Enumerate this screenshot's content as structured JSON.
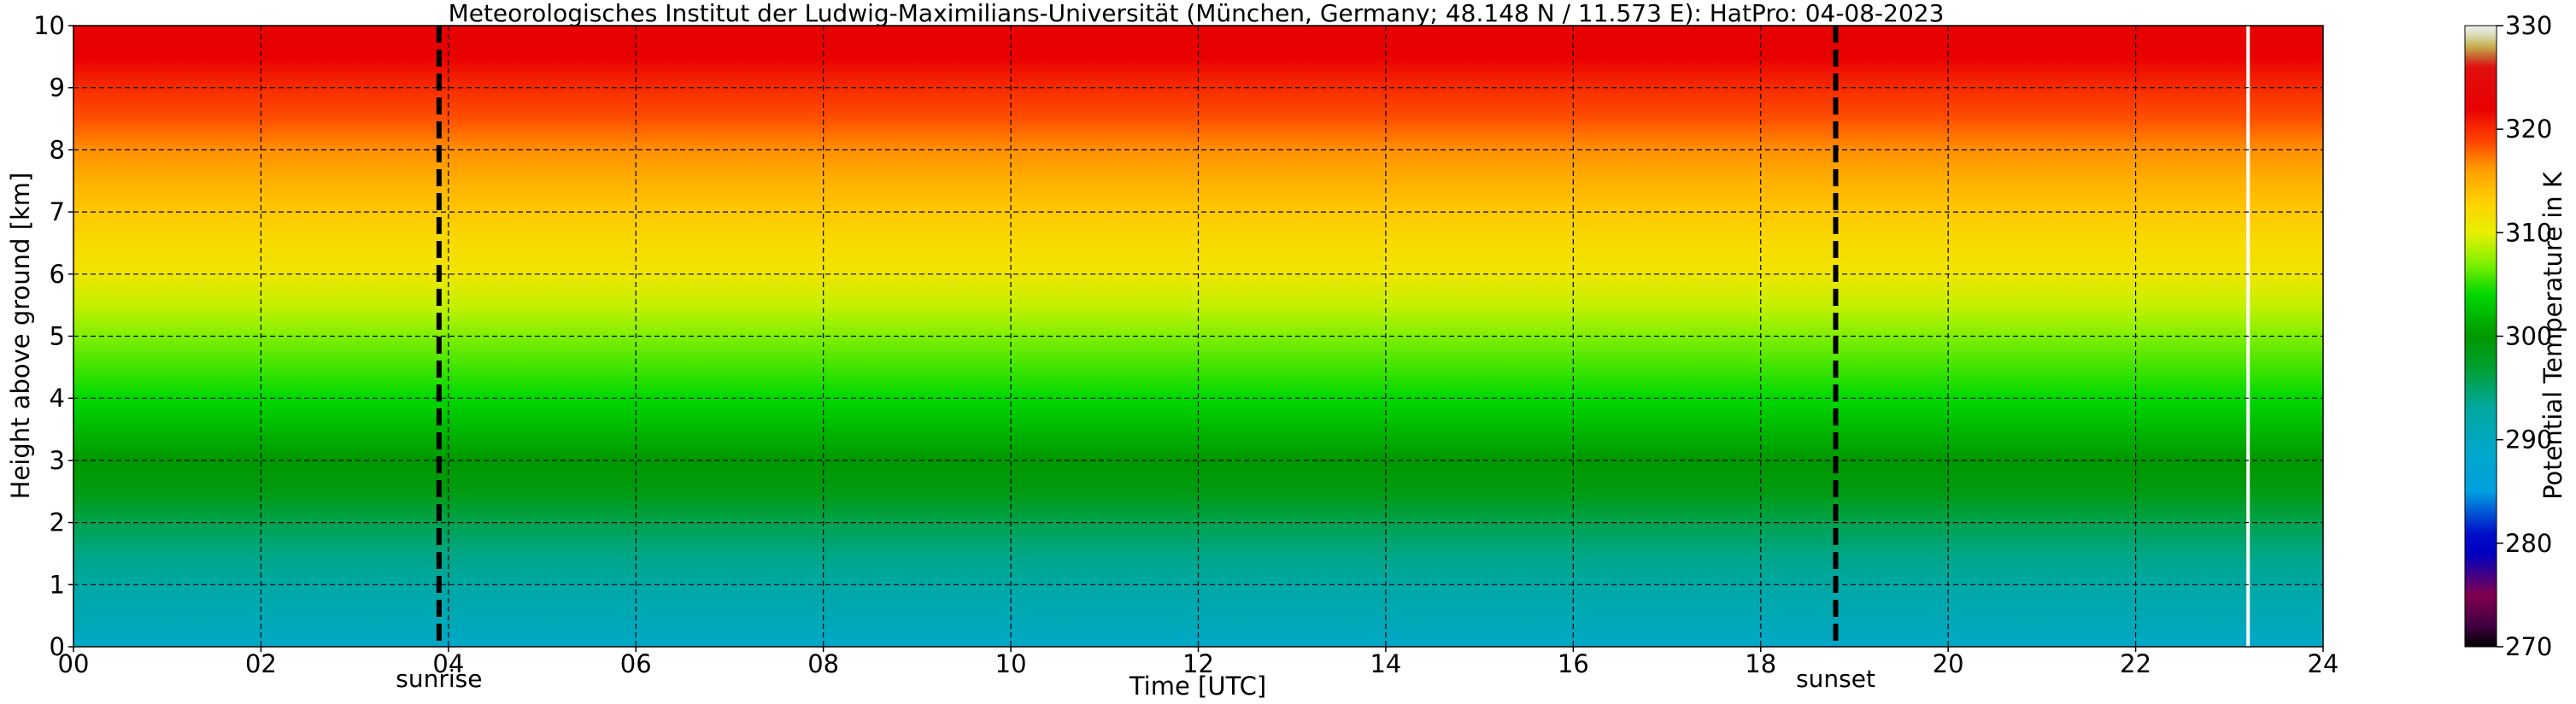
{
  "chart_data": {
    "type": "heatmap",
    "title": "Meteorologisches Institut der Ludwig-Maximilians-Universität (München, Germany; 48.148 N / 11.573 E):    HatPro: 04-08-2023",
    "xlabel": "Time [UTC]",
    "ylabel": "Height above ground [km]",
    "xlim": [
      0,
      24
    ],
    "ylim": [
      0,
      10
    ],
    "x_ticks": [
      "00",
      "02",
      "04",
      "06",
      "08",
      "10",
      "12",
      "14",
      "16",
      "18",
      "20",
      "22",
      "24"
    ],
    "y_ticks": [
      "0",
      "1",
      "2",
      "3",
      "4",
      "5",
      "6",
      "7",
      "8",
      "9",
      "10"
    ],
    "grid": true,
    "colorbar": {
      "label": "Potential Temperature in K",
      "range": [
        270,
        330
      ],
      "ticks": [
        "270",
        "280",
        "290",
        "300",
        "310",
        "320",
        "330"
      ],
      "stops": [
        {
          "value": 270,
          "color": "#000000"
        },
        {
          "value": 272,
          "color": "#400040"
        },
        {
          "value": 275,
          "color": "#800050"
        },
        {
          "value": 279,
          "color": "#0000c0"
        },
        {
          "value": 281,
          "color": "#0010c8"
        },
        {
          "value": 285,
          "color": "#00a0e0"
        },
        {
          "value": 289,
          "color": "#00a8c8"
        },
        {
          "value": 293,
          "color": "#00a8a0"
        },
        {
          "value": 297,
          "color": "#00a030"
        },
        {
          "value": 300,
          "color": "#009800"
        },
        {
          "value": 304,
          "color": "#00d800"
        },
        {
          "value": 307,
          "color": "#80f000"
        },
        {
          "value": 310,
          "color": "#e8f000"
        },
        {
          "value": 313,
          "color": "#ffd000"
        },
        {
          "value": 316,
          "color": "#ffa000"
        },
        {
          "value": 319,
          "color": "#ff4000"
        },
        {
          "value": 322,
          "color": "#e80000"
        },
        {
          "value": 326,
          "color": "#e01010"
        },
        {
          "value": 327,
          "color": "#c86030"
        },
        {
          "value": 328,
          "color": "#c8b050"
        },
        {
          "value": 329,
          "color": "#d8d8b0"
        },
        {
          "value": 330,
          "color": "#f0f0f0"
        }
      ]
    },
    "theta_profile": [
      {
        "height_km": 0,
        "theta_K": 289
      },
      {
        "height_km": 0.5,
        "theta_K": 291
      },
      {
        "height_km": 1,
        "theta_K": 292.5
      },
      {
        "height_km": 1.5,
        "theta_K": 294
      },
      {
        "height_km": 2,
        "theta_K": 296
      },
      {
        "height_km": 2.5,
        "theta_K": 299
      },
      {
        "height_km": 3,
        "theta_K": 300
      },
      {
        "height_km": 3.5,
        "theta_K": 302
      },
      {
        "height_km": 4,
        "theta_K": 304
      },
      {
        "height_km": 4.5,
        "theta_K": 305.5
      },
      {
        "height_km": 5,
        "theta_K": 307
      },
      {
        "height_km": 5.5,
        "theta_K": 309
      },
      {
        "height_km": 6,
        "theta_K": 311
      },
      {
        "height_km": 6.5,
        "theta_K": 312
      },
      {
        "height_km": 7,
        "theta_K": 313.5
      },
      {
        "height_km": 7.5,
        "theta_K": 315
      },
      {
        "height_km": 8,
        "theta_K": 316.5
      },
      {
        "height_km": 8.5,
        "theta_K": 318.5
      },
      {
        "height_km": 9,
        "theta_K": 320
      },
      {
        "height_km": 9.5,
        "theta_K": 322
      },
      {
        "height_km": 10,
        "theta_K": 323
      }
    ],
    "sunrise_utc": 3.9,
    "sunset_utc": 18.8,
    "data_gap_utc": 23.2,
    "event_labels": {
      "sunrise": "sunrise",
      "sunset": "sunset"
    }
  }
}
